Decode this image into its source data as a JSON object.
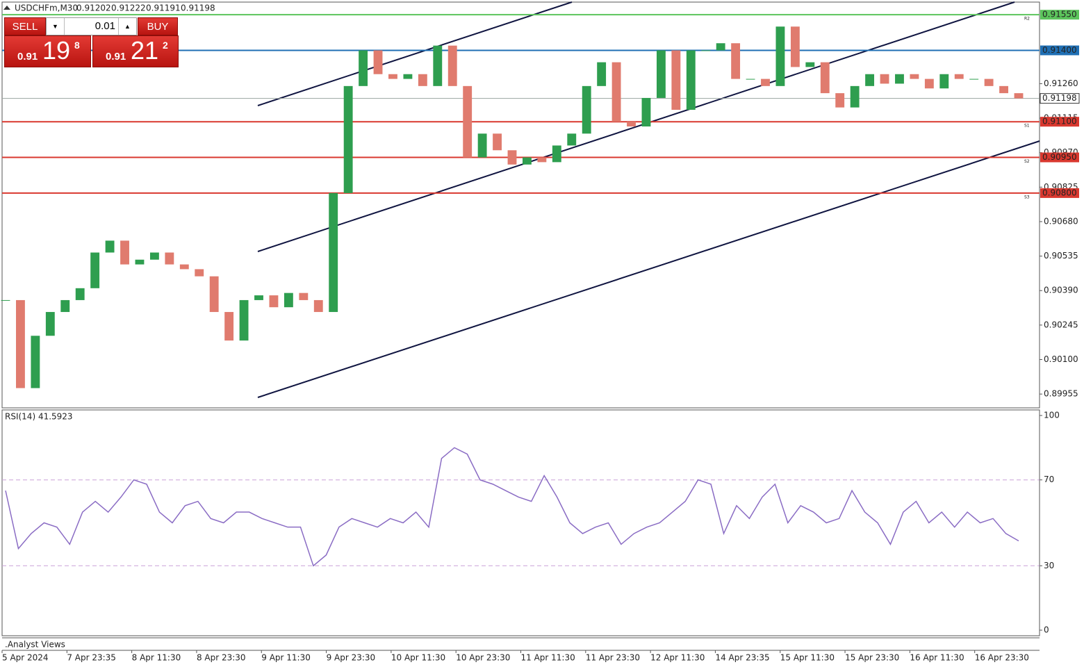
{
  "header": {
    "symbol": "USDCHFm,M30",
    "ohlc": [
      "0.91202",
      "0.91222",
      "0.91191",
      "0.91198"
    ]
  },
  "trade_panel": {
    "sell": "SELL",
    "lot": "0.01",
    "buy": "BUY",
    "sell_price": {
      "big": "0.91",
      "pips": "19",
      "point": "8"
    },
    "buy_price": {
      "big": "0.91",
      "pips": "21",
      "point": "2"
    }
  },
  "chart_data": [
    {
      "type": "candlestick",
      "xticks": [
        "5 Apr 2024",
        "7 Apr 23:35",
        "8 Apr 11:30",
        "8 Apr 23:30",
        "9 Apr 11:30",
        "9 Apr 23:30",
        "10 Apr 11:30",
        "10 Apr 23:30",
        "11 Apr 11:30",
        "11 Apr 23:30",
        "12 Apr 11:30",
        "14 Apr 23:35",
        "15 Apr 11:30",
        "15 Apr 23:30",
        "16 Apr 11:30",
        "16 Apr 23:30"
      ],
      "closes": [
        0.9035,
        0.8998,
        0.902,
        0.903,
        0.9035,
        0.904,
        0.9055,
        0.906,
        0.905,
        0.9052,
        0.9055,
        0.905,
        0.9048,
        0.9045,
        0.903,
        0.9018,
        0.9035,
        0.9037,
        0.9032,
        0.9038,
        0.9035,
        0.903,
        0.908,
        0.9125,
        0.914,
        0.913,
        0.9128,
        0.913,
        0.9125,
        0.9142,
        0.9125,
        0.9095,
        0.9105,
        0.9098,
        0.9092,
        0.9095,
        0.9093,
        0.91,
        0.9105,
        0.9125,
        0.9135,
        0.911,
        0.9108,
        0.912,
        0.914,
        0.9115,
        0.914,
        0.914,
        0.9143,
        0.9128,
        0.9128,
        0.9125,
        0.915,
        0.9133,
        0.9135,
        0.9122,
        0.9116,
        0.9125,
        0.913,
        0.9126,
        0.913,
        0.9128,
        0.9124,
        0.913,
        0.9128,
        0.9128,
        0.9125,
        0.9122,
        0.91198
      ],
      "up_color": "#2e9e4f",
      "down_color": "#e07b6e",
      "ylim": [
        0.89897,
        0.91603
      ],
      "yticks": [
        {
          "value": 0.9126,
          "label": "0.91260"
        },
        {
          "value": 0.91115,
          "label": "0.91115"
        },
        {
          "value": 0.9097,
          "label": "0.90970"
        },
        {
          "value": 0.90825,
          "label": "0.90825"
        },
        {
          "value": 0.9068,
          "label": "0.90680"
        },
        {
          "value": 0.90535,
          "label": "0.90535"
        },
        {
          "value": 0.9039,
          "label": "0.90390"
        },
        {
          "value": 0.90245,
          "label": "0.90245"
        },
        {
          "value": 0.901,
          "label": "0.90100"
        },
        {
          "value": 0.89955,
          "label": "0.89955"
        }
      ],
      "levels": [
        {
          "value": 0.9155,
          "label": "0.91550",
          "color": "#5cc45c",
          "tag": "R2"
        },
        {
          "value": 0.914,
          "label": "0.91400",
          "color": "#1f6fb4"
        },
        {
          "value": 0.91198,
          "label": "0.91198",
          "color": "#9aa5a0"
        },
        {
          "value": 0.911,
          "label": "0.91100",
          "color": "#d9382f",
          "tag": "S1"
        },
        {
          "value": 0.9095,
          "label": "0.90950",
          "color": "#d9382f",
          "tag": "S2"
        },
        {
          "value": 0.908,
          "label": "0.90800",
          "color": "#d9382f",
          "tag": "S3"
        }
      ]
    },
    {
      "type": "line",
      "title": "RSI(14) 41.5923",
      "color": "#8a6cc4",
      "values": [
        65,
        38,
        45,
        50,
        48,
        40,
        55,
        60,
        55,
        62,
        70,
        68,
        55,
        50,
        58,
        60,
        52,
        50,
        55,
        55,
        52,
        50,
        48,
        48,
        30,
        35,
        48,
        52,
        50,
        48,
        52,
        50,
        55,
        48,
        80,
        85,
        82,
        70,
        68,
        65,
        62,
        60,
        72,
        62,
        50,
        45,
        48,
        50,
        40,
        45,
        48,
        50,
        55,
        60,
        70,
        68,
        45,
        58,
        52,
        62,
        68,
        50,
        58,
        55,
        50,
        52,
        65,
        55,
        50,
        40,
        55,
        60,
        50,
        55,
        48,
        55,
        50,
        52,
        45,
        41.5923
      ],
      "ylim": [
        0,
        100
      ],
      "yticks": [
        100,
        70,
        30,
        0
      ],
      "levels": [
        70,
        30
      ]
    }
  ],
  "footer": {
    "indicator": ".Analyst Views"
  }
}
